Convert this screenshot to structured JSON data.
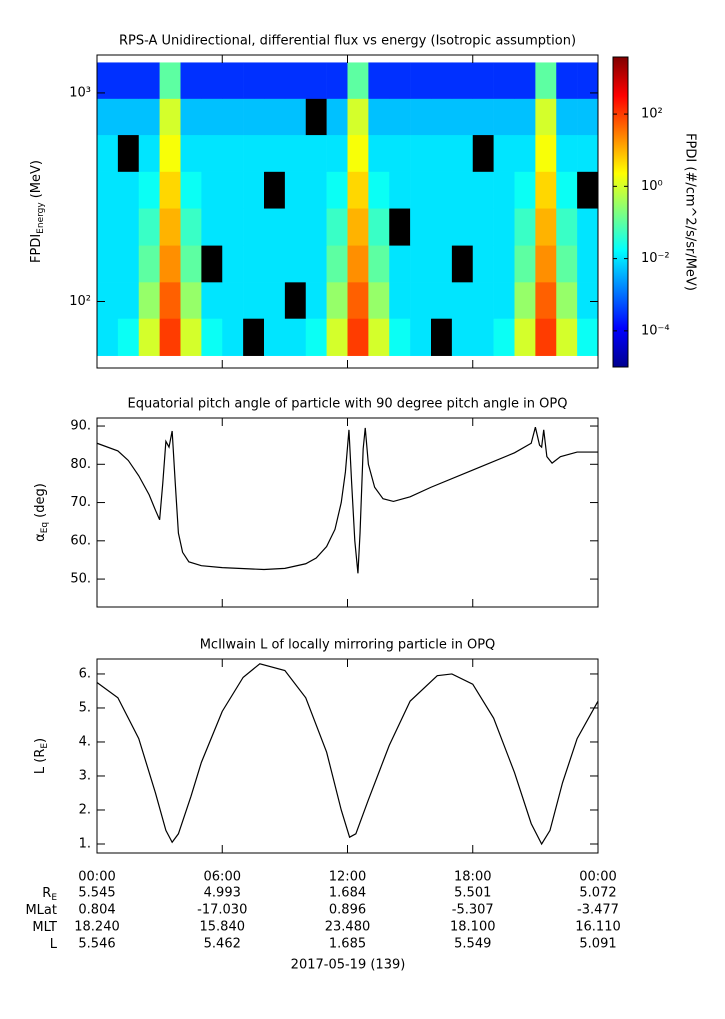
{
  "chart_data": [
    {
      "type": "heatmap",
      "title": "RPS-A Unidirectional, differential flux vs energy (Isotropic assumption)",
      "ylabel": [
        "FPDI",
        "Energy",
        "(MeV)"
      ],
      "colorbar_label": "FPDI (#/cm^2/s/sr/MeV)",
      "xlim": [
        0,
        24
      ],
      "xticks": [
        0,
        6,
        12,
        18,
        24
      ],
      "ylim": [
        48,
        1520
      ],
      "yscale": "log",
      "yticks": [
        {
          "value": 100,
          "label": "10²"
        },
        {
          "value": 1000,
          "label": "10³"
        }
      ],
      "zlim": [
        1e-05,
        3800
      ],
      "zscale": "log",
      "colormap": "jet",
      "zticks": [
        {
          "value": 100,
          "label": "10²"
        },
        {
          "value": 1,
          "label": "10⁰"
        },
        {
          "value": 0.01,
          "label": "10⁻²"
        },
        {
          "value": 0.0001,
          "label": "10⁻⁴"
        }
      ],
      "x_bins": [
        0,
        1,
        2,
        3,
        4,
        5,
        6,
        7,
        8,
        9,
        10,
        11,
        12,
        13,
        14,
        15,
        16,
        17,
        18,
        19,
        20,
        21,
        22,
        23,
        24
      ],
      "y_bins": [
        55,
        83,
        124,
        186,
        280,
        420,
        630,
        940,
        1400
      ],
      "z": [
        [
          0.01,
          0.02,
          1,
          100,
          1,
          0.02,
          0.01,
          null,
          0.01,
          0.01,
          0.02,
          1,
          100,
          1,
          0.02,
          0.01,
          null,
          0.01,
          0.01,
          0.02,
          1,
          100,
          1,
          0.02
        ],
        [
          0.01,
          0.01,
          0.3,
          50,
          0.3,
          0.01,
          0.01,
          0.01,
          0.01,
          null,
          0.01,
          0.3,
          50,
          0.3,
          0.01,
          0.01,
          0.01,
          0.01,
          0.01,
          0.01,
          0.3,
          50,
          0.3,
          0.01
        ],
        [
          0.01,
          0.01,
          0.1,
          20,
          0.1,
          null,
          0.01,
          0.01,
          0.01,
          0.01,
          0.01,
          0.1,
          20,
          0.1,
          0.01,
          0.01,
          0.01,
          null,
          0.01,
          0.01,
          0.1,
          20,
          0.1,
          0.01
        ],
        [
          0.01,
          0.01,
          0.05,
          10,
          0.05,
          0.01,
          0.01,
          0.01,
          0.01,
          0.01,
          0.01,
          0.05,
          10,
          0.05,
          null,
          0.01,
          0.01,
          0.01,
          0.01,
          0.01,
          0.05,
          10,
          0.05,
          0.01
        ],
        [
          0.01,
          0.01,
          0.02,
          5,
          0.02,
          0.01,
          0.01,
          0.01,
          null,
          0.01,
          0.01,
          0.02,
          5,
          0.02,
          0.01,
          0.01,
          0.01,
          0.01,
          0.01,
          0.01,
          0.02,
          5,
          0.02,
          null
        ],
        [
          0.01,
          null,
          0.01,
          2,
          0.01,
          0.01,
          0.01,
          0.01,
          0.01,
          0.01,
          0.01,
          0.01,
          2,
          0.01,
          0.01,
          0.01,
          0.01,
          0.01,
          null,
          0.01,
          0.01,
          2,
          0.01,
          0.01
        ],
        [
          0.005,
          0.005,
          0.005,
          1,
          0.005,
          0.005,
          0.005,
          0.005,
          0.005,
          0.005,
          null,
          0.005,
          1,
          0.005,
          0.005,
          0.005,
          0.005,
          0.005,
          0.005,
          0.005,
          0.005,
          1,
          0.005,
          0.005
        ],
        [
          0.0003,
          0.0003,
          0.0003,
          0.1,
          0.0003,
          0.0003,
          0.0003,
          0.0003,
          0.0003,
          0.0003,
          0.0003,
          0.0003,
          0.1,
          0.0003,
          0.0003,
          0.0003,
          0.0003,
          0.0003,
          0.0003,
          0.0003,
          0.0003,
          0.1,
          0.0003,
          0.0003
        ]
      ]
    },
    {
      "type": "line",
      "title": "Equatorial pitch angle of particle with 90 degree pitch angle in OPQ",
      "ylabel": [
        "α",
        "Eq",
        "(deg)"
      ],
      "color": "#000000",
      "xlim": [
        0,
        24
      ],
      "xticks": [
        0,
        6,
        12,
        18,
        24
      ],
      "ylim": [
        42.7,
        92.1
      ],
      "yticks": [
        {
          "value": 50,
          "label": "50."
        },
        {
          "value": 60,
          "label": "60."
        },
        {
          "value": 70,
          "label": "70."
        },
        {
          "value": 80,
          "label": "80."
        },
        {
          "value": 90,
          "label": "90."
        }
      ],
      "x": [
        0,
        1,
        1.5,
        2,
        2.5,
        2.8,
        3.0,
        3.15,
        3.3,
        3.45,
        3.6,
        3.75,
        3.9,
        4.1,
        4.4,
        5,
        6,
        8,
        9,
        10,
        10.5,
        11,
        11.4,
        11.7,
        11.9,
        12.07,
        12.2,
        12.35,
        12.5,
        12.6,
        12.75,
        12.85,
        13.0,
        13.3,
        13.7,
        14.2,
        15,
        16,
        18,
        20,
        20.8,
        21.0,
        21.2,
        21.3,
        21.4,
        21.55,
        21.8,
        22.2,
        23,
        24
      ],
      "values": [
        85.5,
        83.5,
        81,
        77,
        72,
        68,
        65.5,
        75,
        86,
        84.5,
        88.7,
        75,
        62,
        57,
        54.5,
        53.5,
        53,
        52.5,
        52.8,
        54,
        55.5,
        58.5,
        63,
        70,
        78,
        89,
        75,
        60,
        51.5,
        62,
        84,
        89.5,
        80,
        74,
        71,
        70.3,
        71.5,
        74,
        78.5,
        83,
        85.5,
        89.7,
        85,
        84.5,
        89,
        82,
        80.3,
        82,
        83.2,
        83.2
      ]
    },
    {
      "type": "line",
      "title": "McIlwain L of locally mirroring particle in OPQ",
      "ylabel": [
        "L (R",
        "E",
        ")"
      ],
      "color": "#000000",
      "xlim": [
        0,
        24
      ],
      "xticks": [
        {
          "value": 0,
          "label": "00:00"
        },
        {
          "value": 6,
          "label": "06:00"
        },
        {
          "value": 12,
          "label": "12:00"
        },
        {
          "value": 18,
          "label": "18:00"
        },
        {
          "value": 24,
          "label": "00:00"
        }
      ],
      "ylim": [
        0.735,
        6.44
      ],
      "yticks": [
        {
          "value": 1,
          "label": "1."
        },
        {
          "value": 2,
          "label": "2."
        },
        {
          "value": 3,
          "label": "3."
        },
        {
          "value": 4,
          "label": "4."
        },
        {
          "value": 5,
          "label": "5."
        },
        {
          "value": 6,
          "label": "6."
        }
      ],
      "x": [
        0,
        1,
        2,
        2.8,
        3.3,
        3.6,
        3.9,
        4.5,
        5,
        6,
        7,
        7.8,
        9,
        10,
        11,
        11.7,
        12.1,
        12.4,
        13,
        14,
        15,
        16.3,
        17,
        18,
        19,
        20,
        20.8,
        21.3,
        21.7,
        22.3,
        23,
        24
      ],
      "values": [
        5.75,
        5.3,
        4.1,
        2.5,
        1.4,
        1.05,
        1.3,
        2.4,
        3.4,
        4.9,
        5.9,
        6.3,
        6.1,
        5.3,
        3.7,
        2.0,
        1.2,
        1.3,
        2.3,
        3.9,
        5.2,
        5.95,
        6.0,
        5.7,
        4.7,
        3.1,
        1.6,
        1.0,
        1.4,
        2.8,
        4.1,
        5.2
      ]
    }
  ],
  "ephemeris": {
    "rows": [
      {
        "label": "R",
        "sub": "E",
        "values": [
          "5.545",
          "4.993",
          "1.684",
          "5.501",
          "5.072"
        ]
      },
      {
        "label": "MLat",
        "values": [
          "0.804",
          "-17.030",
          "0.896",
          "-5.307",
          "-3.477"
        ]
      },
      {
        "label": "MLT",
        "values": [
          "18.240",
          "15.840",
          "23.480",
          "18.100",
          "16.110"
        ]
      },
      {
        "label": "L",
        "values": [
          "5.546",
          "5.462",
          "1.685",
          "5.549",
          "5.091"
        ]
      }
    ],
    "date_label": "2017-05-19 (139)"
  }
}
